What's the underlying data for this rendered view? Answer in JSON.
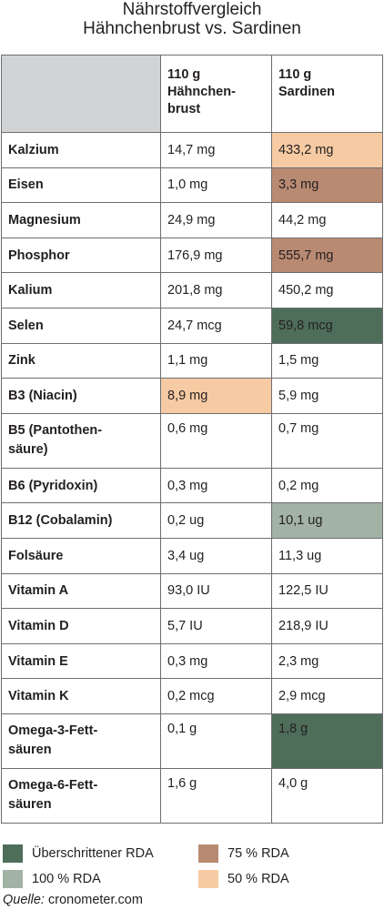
{
  "title_line1": "Nährstoffvergleich",
  "title_line2": "Hähnchenbrust vs. Sardinen",
  "colors": {
    "exceeded": "#4e6e5a",
    "rda100": "#a2b2a5",
    "rda75": "#b98a72",
    "rda50": "#f6cba3",
    "none": "#ffffff"
  },
  "chart_data": {
    "type": "table",
    "columns": [
      "110 g Hähnchen-brust",
      "110 g Sardinen"
    ],
    "rows": [
      {
        "name": "Kalzium",
        "chicken": "14,7 mg",
        "chicken_level": "none",
        "sardine": "433,2 mg",
        "sardine_level": "rda50"
      },
      {
        "name": "Eisen",
        "chicken": "1,0 mg",
        "chicken_level": "none",
        "sardine": "3,3 mg",
        "sardine_level": "rda75"
      },
      {
        "name": "Magnesium",
        "chicken": "24,9 mg",
        "chicken_level": "none",
        "sardine": "44,2 mg",
        "sardine_level": "none"
      },
      {
        "name": "Phosphor",
        "chicken": "176,9 mg",
        "chicken_level": "none",
        "sardine": "555,7 mg",
        "sardine_level": "rda75"
      },
      {
        "name": "Kalium",
        "chicken": "201,8 mg",
        "chicken_level": "none",
        "sardine": "450,2 mg",
        "sardine_level": "none"
      },
      {
        "name": "Selen",
        "chicken": "24,7 mcg",
        "chicken_level": "none",
        "sardine": "59,8 mcg",
        "sardine_level": "exceeded"
      },
      {
        "name": "Zink",
        "chicken": "1,1 mg",
        "chicken_level": "none",
        "sardine": "1,5 mg",
        "sardine_level": "none"
      },
      {
        "name": "B3 (Niacin)",
        "chicken": "8,9 mg",
        "chicken_level": "rda50",
        "sardine": "5,9 mg",
        "sardine_level": "none"
      },
      {
        "name": "B5 (Pantothen-säure)",
        "chicken": "0,6 mg",
        "chicken_level": "none",
        "sardine": "0,7 mg",
        "sardine_level": "none"
      },
      {
        "name": "B6 (Pyridoxin)",
        "chicken": "0,3 mg",
        "chicken_level": "none",
        "sardine": "0,2 mg",
        "sardine_level": "none"
      },
      {
        "name": "B12 (Cobalamin)",
        "chicken": "0,2 ug",
        "chicken_level": "none",
        "sardine": "10,1 ug",
        "sardine_level": "rda100"
      },
      {
        "name": "Folsäure",
        "chicken": "3,4 ug",
        "chicken_level": "none",
        "sardine": "11,3 ug",
        "sardine_level": "none"
      },
      {
        "name": "Vitamin A",
        "chicken": "93,0 IU",
        "chicken_level": "none",
        "sardine": "122,5 IU",
        "sardine_level": "none"
      },
      {
        "name": "Vitamin D",
        "chicken": "5,7 IU",
        "chicken_level": "none",
        "sardine": "218,9 IU",
        "sardine_level": "none"
      },
      {
        "name": "Vitamin E",
        "chicken": "0,3 mg",
        "chicken_level": "none",
        "sardine": "2,3 mg",
        "sardine_level": "none"
      },
      {
        "name": "Vitamin K",
        "chicken": "0,2 mcg",
        "chicken_level": "none",
        "sardine": "2,9 mcg",
        "sardine_level": "none"
      },
      {
        "name": "Omega-3-Fett-säuren",
        "chicken": "0,1 g",
        "chicken_level": "none",
        "sardine": "1,8 g",
        "sardine_level": "exceeded"
      },
      {
        "name": "Omega-6-Fett-säuren",
        "chicken": "1,6 g",
        "chicken_level": "none",
        "sardine": "4,0 g",
        "sardine_level": "none"
      }
    ]
  },
  "legend": {
    "exceeded": "Überschrittener RDA",
    "rda75": "75 % RDA",
    "rda100": "100 % RDA",
    "rda50": "50 % RDA"
  },
  "source": {
    "label": "Quelle:",
    "text": "cronometer.com"
  }
}
